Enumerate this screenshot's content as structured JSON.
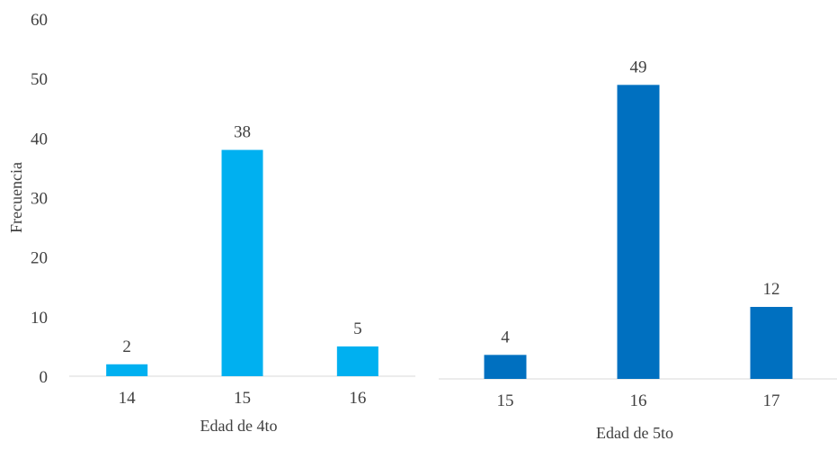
{
  "chart_data": [
    {
      "type": "bar",
      "categories": [
        "14",
        "15",
        "16"
      ],
      "values": [
        2,
        38,
        5
      ],
      "data_labels": [
        "2",
        "38",
        "5"
      ],
      "xlabel": "Edad de 4to",
      "ylabel": "Frecuencia",
      "ylim": [
        0,
        60
      ],
      "y_ticks": [
        "0",
        "10",
        "20",
        "30",
        "40",
        "50",
        "60"
      ],
      "grid": false,
      "color": "#00B0F0"
    },
    {
      "type": "bar",
      "categories": [
        "15",
        "16",
        "17"
      ],
      "values": [
        4,
        49,
        12
      ],
      "data_labels": [
        "4",
        "49",
        "12"
      ],
      "xlabel": "Edad de 5to",
      "ylabel": "",
      "ylim": [
        0,
        60
      ],
      "grid": false,
      "color": "#0070C0"
    }
  ]
}
